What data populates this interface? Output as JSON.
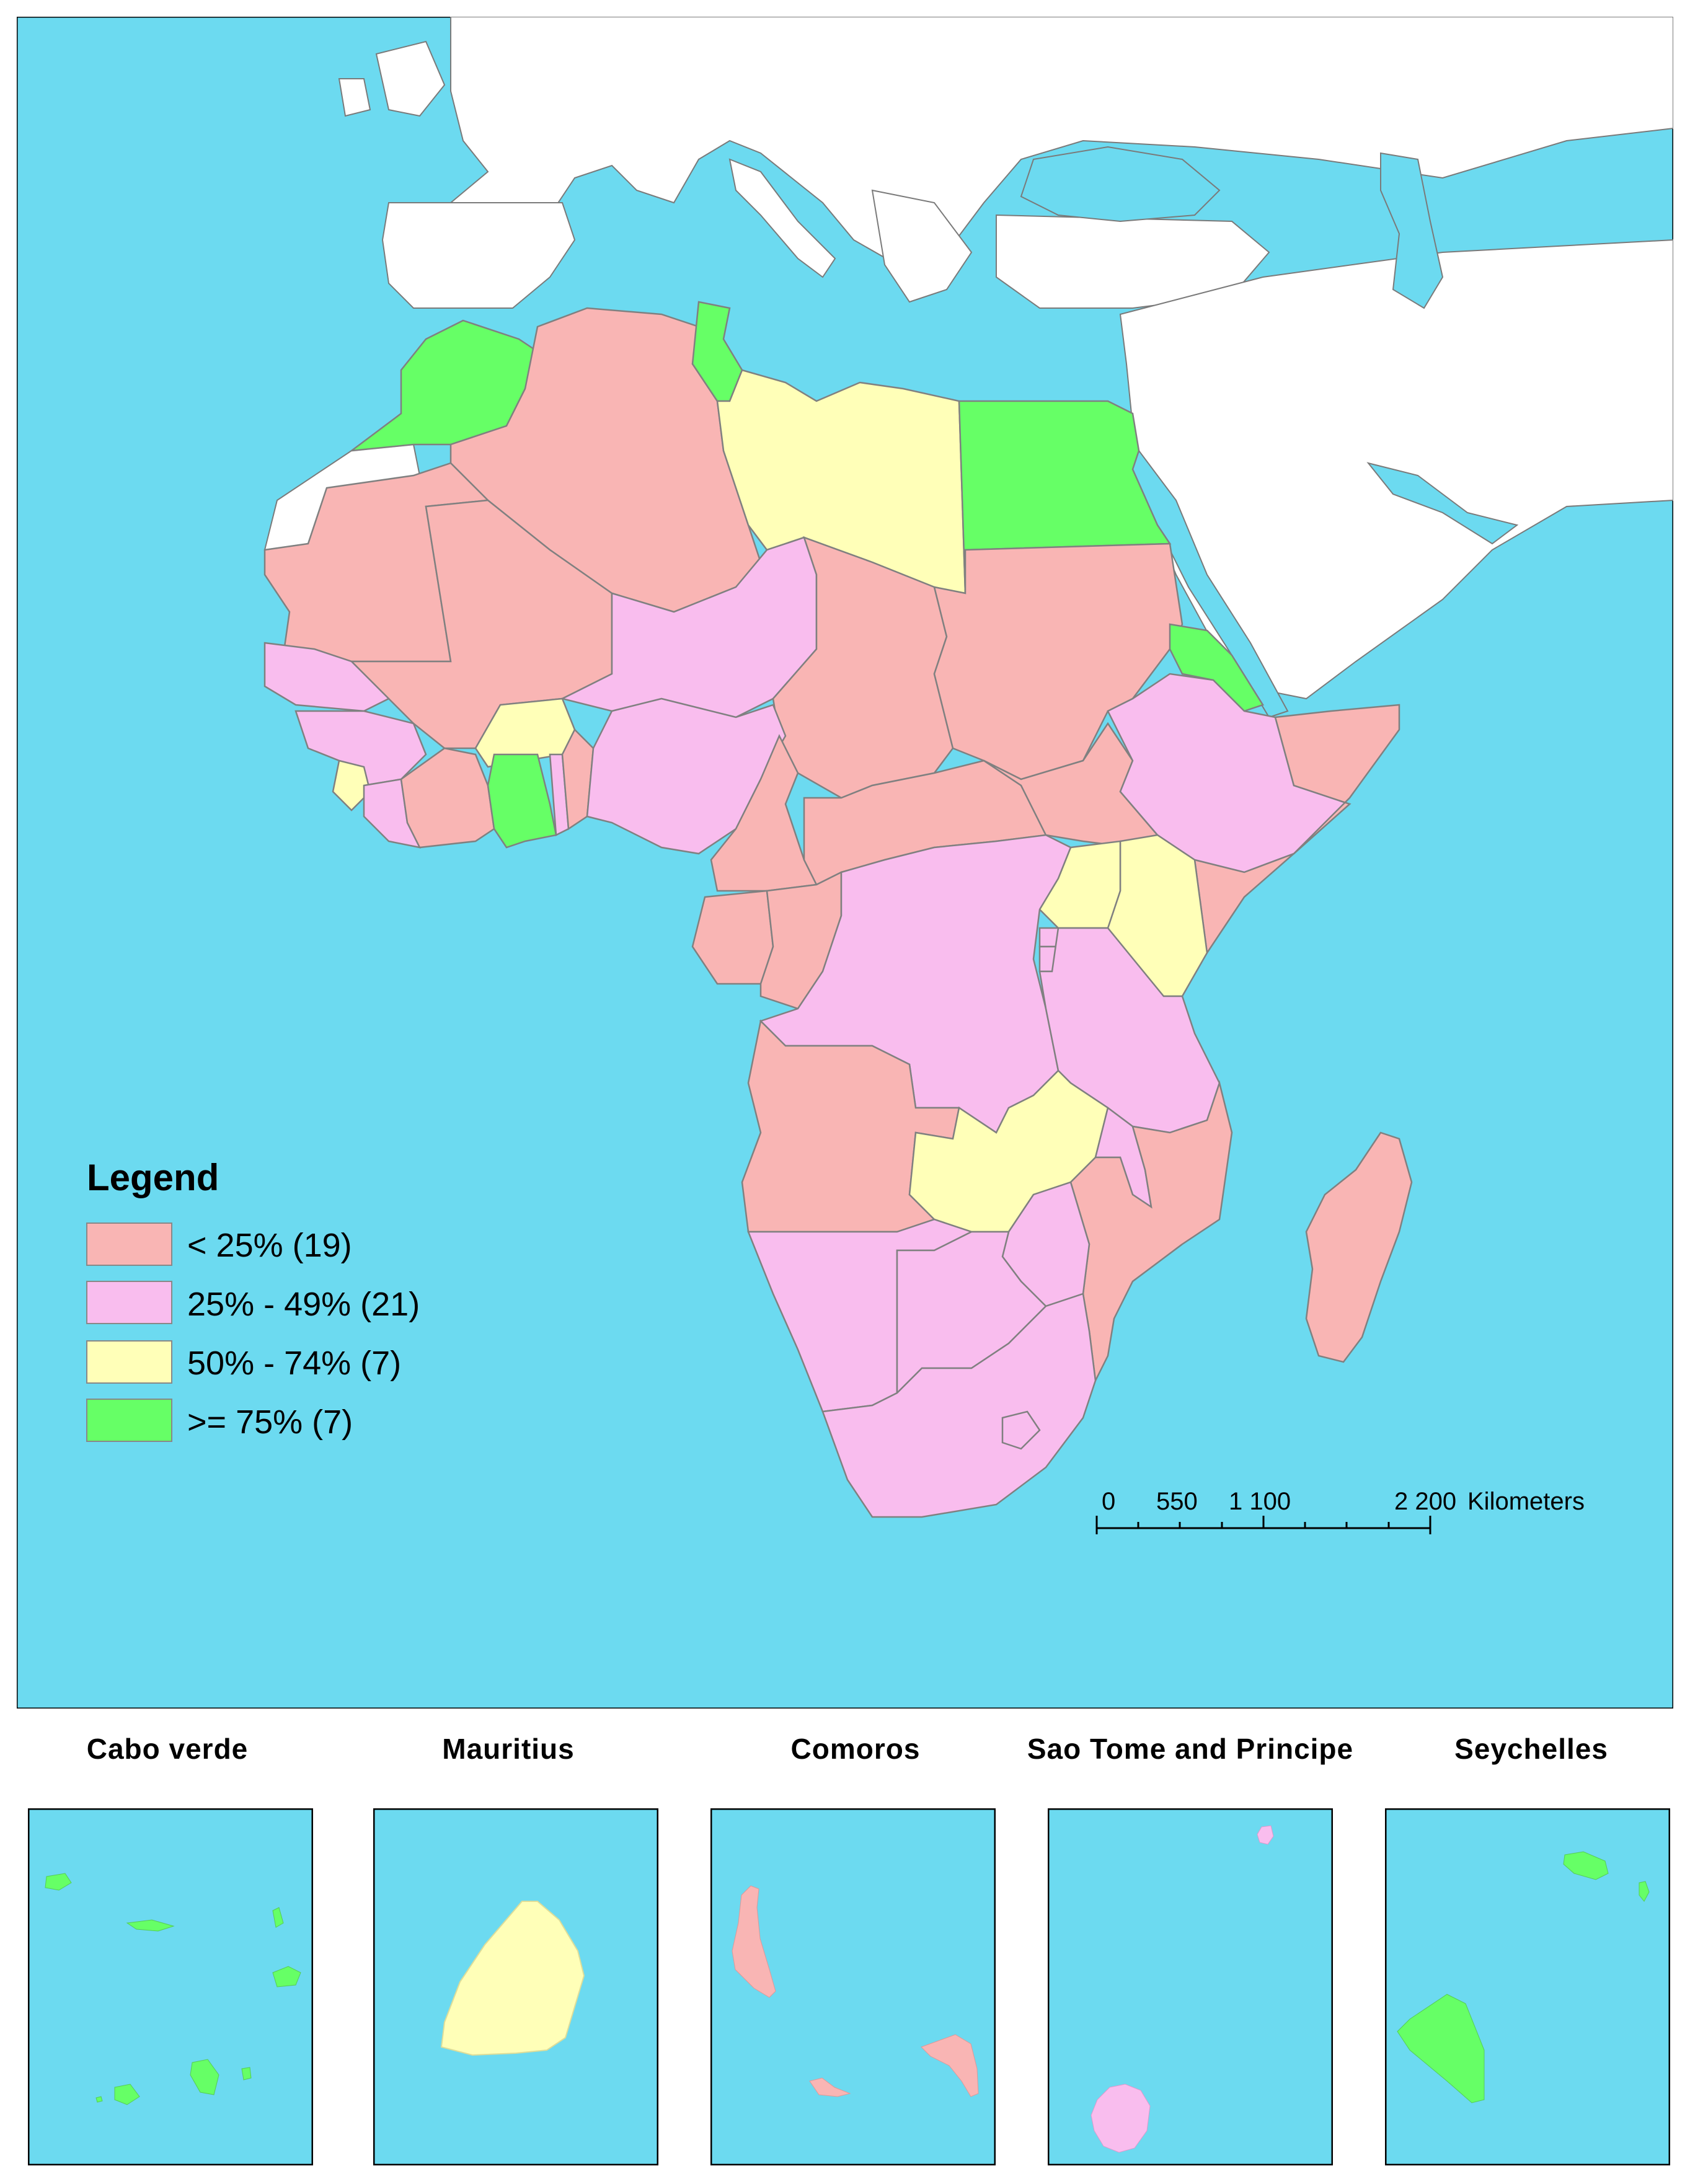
{
  "legend": {
    "title": "Legend",
    "classes": [
      {
        "label": "< 25% (19)",
        "color": "#F9B5B4"
      },
      {
        "label": "25% - 49% (21)",
        "color": "#F9BDEE"
      },
      {
        "label": "50% - 74% (7)",
        "color": "#FFFFB8"
      },
      {
        "label": ">= 75% (7)",
        "color": "#66FF66"
      }
    ]
  },
  "scale_bar": {
    "ticks": [
      "0",
      "550",
      "1 100",
      "2 200"
    ],
    "unit": "Kilometers"
  },
  "colors": {
    "ocean": "#6CDAF0",
    "non_african_land": "#FFFFFF",
    "border": "#7A7A7A"
  },
  "insets": [
    {
      "title": "Cabo verde",
      "class": ">= 75% (7)"
    },
    {
      "title": "Mauritius",
      "class": "50% - 74% (7)"
    },
    {
      "title": "Comoros",
      "class": "< 25% (19)"
    },
    {
      "title": "Sao Tome and Principe",
      "class": "25% - 49% (21)"
    },
    {
      "title": "Seychelles",
      "class": ">= 75% (7)"
    }
  ]
}
